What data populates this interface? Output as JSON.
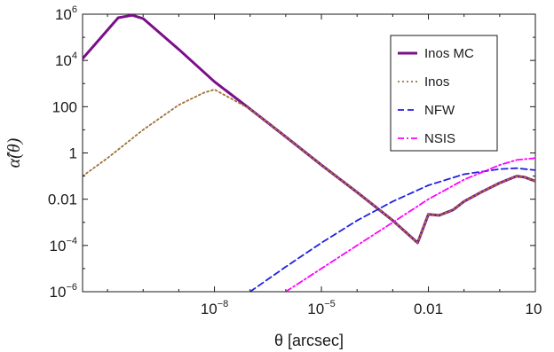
{
  "chart_data": {
    "type": "line",
    "xlabel": "θ [arcsec]",
    "ylabel": "α̂(θ)",
    "x_scale": "log",
    "y_scale": "log",
    "xlim": [
      2e-12,
      10
    ],
    "ylim": [
      1e-06,
      1000000.0
    ],
    "x_ticks": [
      {
        "value": 1e-08,
        "base": "10",
        "exp": "−8"
      },
      {
        "value": 1e-05,
        "base": "10",
        "exp": "−5"
      },
      {
        "value": 0.01,
        "label": "0.01"
      },
      {
        "value": 10,
        "label": "10"
      }
    ],
    "y_ticks": [
      {
        "value": 1e-06,
        "base": "10",
        "exp": "−6"
      },
      {
        "value": 0.0001,
        "base": "10",
        "exp": "−4"
      },
      {
        "value": 0.01,
        "label": "0.01"
      },
      {
        "value": 1,
        "label": "1"
      },
      {
        "value": 100,
        "label": "100"
      },
      {
        "value": 10000.0,
        "base": "10",
        "exp": "4"
      },
      {
        "value": 1000000.0,
        "base": "10",
        "exp": "6"
      }
    ],
    "grid": false,
    "legend_position": "top-right",
    "series": [
      {
        "name": "Inos MC",
        "color": "#7b0f8a",
        "style": "solid",
        "x": [
          2e-12,
          2e-11,
          5e-11,
          1e-10,
          1e-09,
          1e-08,
          1e-07,
          1e-06,
          1e-05,
          0.0001,
          0.001,
          0.005,
          0.01,
          0.02,
          0.05,
          0.1,
          0.3,
          1,
          3,
          5,
          10
        ],
        "y": [
          12000,
          700000.0,
          900000.0,
          650000.0,
          30000.0,
          1200,
          80,
          5.0,
          0.3,
          0.02,
          0.0012,
          0.00013,
          0.0022,
          0.002,
          0.0035,
          0.008,
          0.02,
          0.05,
          0.1,
          0.09,
          0.06
        ]
      },
      {
        "name": "Inos",
        "color": "#a0703a",
        "style": "dotted",
        "x": [
          2e-12,
          1e-11,
          1e-10,
          1e-09,
          5e-09,
          1e-08,
          1e-07,
          1e-06,
          1e-05,
          0.0001,
          0.001,
          0.005,
          0.01,
          0.02,
          0.05,
          0.1,
          0.3,
          1,
          3,
          5,
          10
        ],
        "y": [
          0.1,
          0.6,
          10,
          120,
          400,
          550,
          80,
          5.0,
          0.3,
          0.02,
          0.0012,
          0.00013,
          0.0022,
          0.002,
          0.0035,
          0.008,
          0.02,
          0.05,
          0.1,
          0.09,
          0.06
        ]
      },
      {
        "name": "NFW",
        "color": "#2020e0",
        "style": "dashed",
        "x": [
          1e-07,
          1e-06,
          1e-05,
          0.0001,
          0.001,
          0.01,
          0.1,
          1,
          3,
          10
        ],
        "y": [
          1e-06,
          1.2e-05,
          0.00013,
          0.0012,
          0.008,
          0.04,
          0.12,
          0.2,
          0.22,
          0.18
        ]
      },
      {
        "name": "NSIS",
        "color": "#ff00ff",
        "style": "dashdot",
        "x": [
          1e-06,
          1e-05,
          0.0001,
          0.001,
          0.01,
          0.1,
          1,
          3,
          10
        ],
        "y": [
          1e-06,
          1e-05,
          0.0001,
          0.001,
          0.01,
          0.07,
          0.3,
          0.5,
          0.6
        ]
      }
    ]
  }
}
